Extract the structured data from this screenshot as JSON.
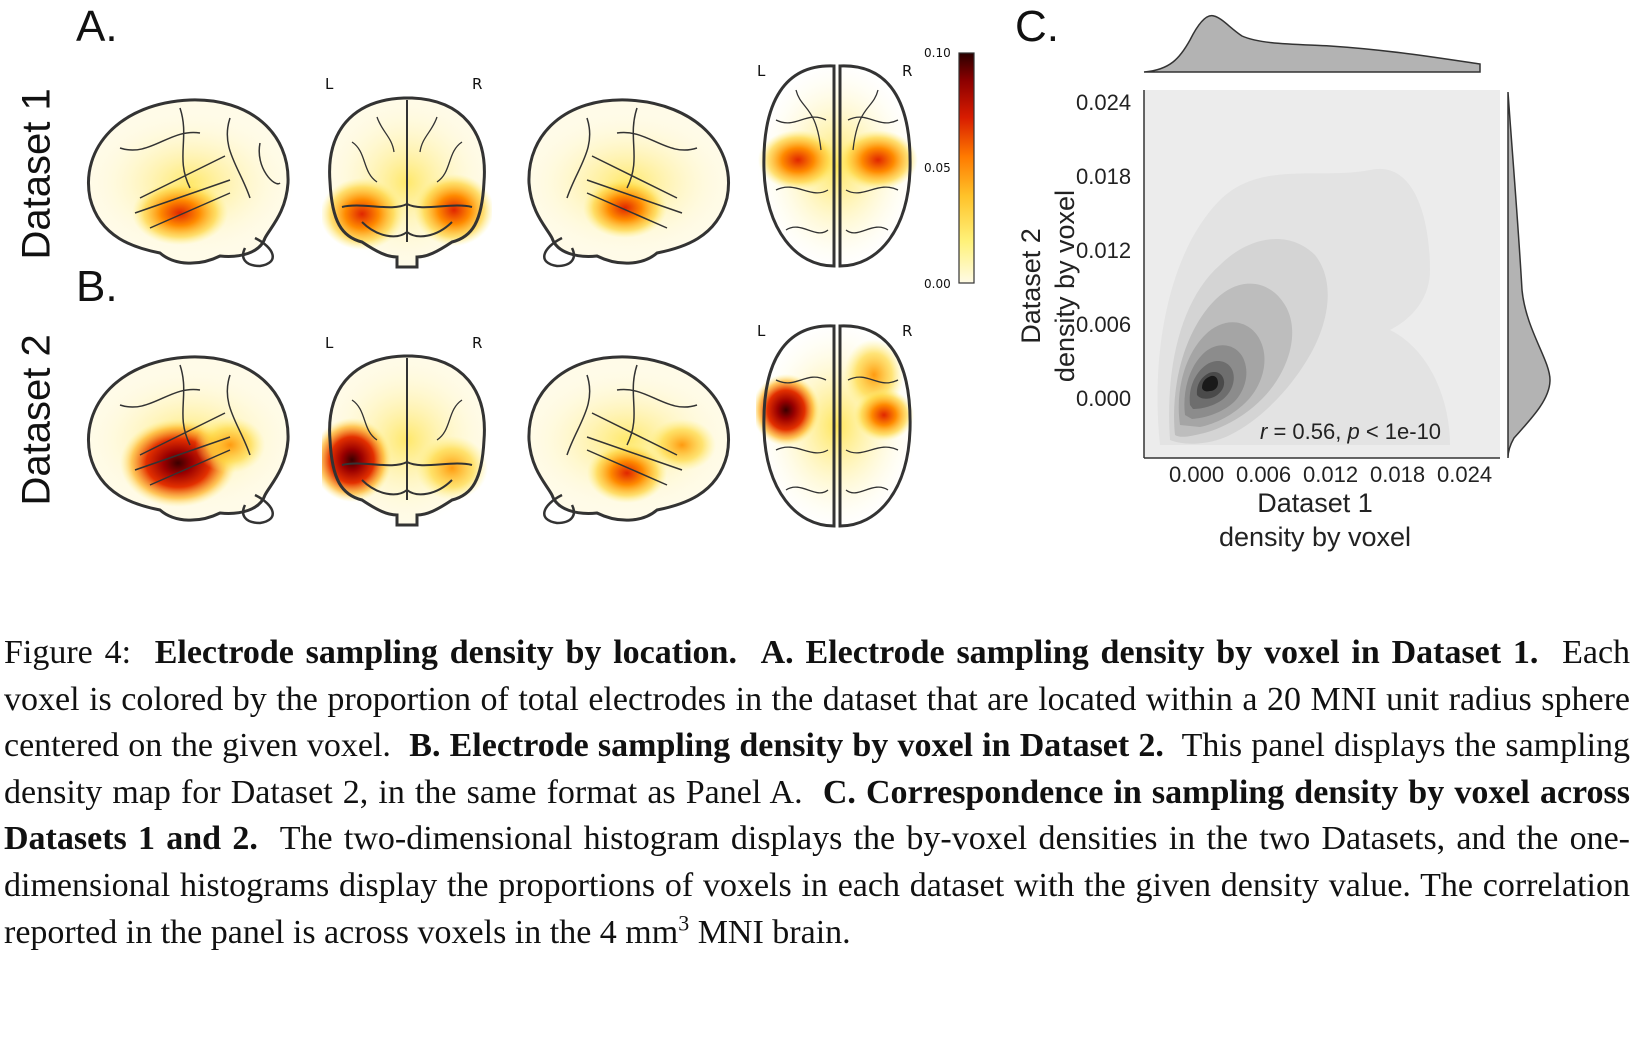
{
  "panels": {
    "a_label": "A.",
    "b_label": "B.",
    "c_label": "C.",
    "row1_label": "Dataset 1",
    "row2_label": "Dataset 2",
    "left_marker": "L",
    "right_marker": "R"
  },
  "colorbar": {
    "ticks": [
      "0.10",
      "0.05",
      "0.00"
    ],
    "colors": [
      "#fffbe6",
      "#fff27a",
      "#ffc229",
      "#ff7a00",
      "#d81c00",
      "#8c0000",
      "#2a0000"
    ]
  },
  "chart_data": {
    "type": "kde-joint",
    "xlabel": "Dataset 1\ndensity by voxel",
    "ylabel": "Dataset 2\ndensity by voxel",
    "xticks": [
      "0.000",
      "0.006",
      "0.012",
      "0.018",
      "0.024"
    ],
    "yticks": [
      "0.024",
      "0.018",
      "0.012",
      "0.006",
      "0.000"
    ],
    "xlim": [
      -0.0045,
      0.0262
    ],
    "ylim": [
      -0.0035,
      0.0255
    ],
    "annotation": "r = 0.56, p < 1e-10",
    "peak": [
      0.0001,
      0.0016
    ]
  },
  "caption": {
    "fig_label": "Figure 4:",
    "title": "Electrode sampling density by location.",
    "a_title": "A. Electrode sampling density by voxel in Dataset 1.",
    "a_text": "Each voxel is colored by the proportion of total electrodes in the dataset that are located within a 20 MNI unit radius sphere centered on the given voxel.",
    "b_title": "B. Electrode sampling density by voxel in Dataset 2.",
    "b_text": "This panel displays the sampling density map for Dataset 2, in the same format as Panel A.",
    "c_title": "C. Correspondence in sampling density by voxel across Datasets 1 and 2.",
    "c_text_1": "The two-dimensional histogram displays the by-voxel densities in the two Datasets, and the one-dimensional histograms display the proportions of voxels in each dataset with the given density value. The correlation reported in the panel is across voxels in the 4 mm",
    "c_sup": "3",
    "c_text_2": "MNI brain."
  }
}
